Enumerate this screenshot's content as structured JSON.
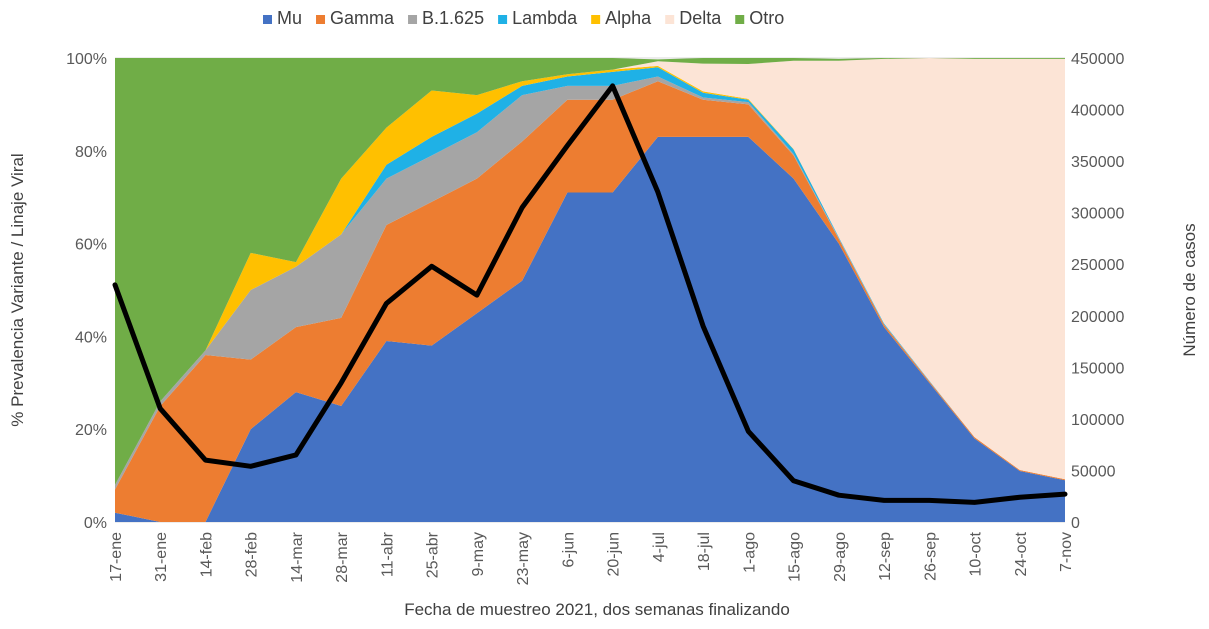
{
  "chart_data": {
    "type": "area",
    "stacked": true,
    "normalized_percent": true,
    "xlabel": "Fecha de muestreo 2021, dos semanas finalizando",
    "ylabel": "% Prevalencia Variante / Linaje Viral",
    "y2label": "Número de casos",
    "categories": [
      "17-ene",
      "31-ene",
      "14-feb",
      "28-feb",
      "14-mar",
      "28-mar",
      "11-abr",
      "25-abr",
      "9-may",
      "23-may",
      "6-jun",
      "20-jun",
      "4-jul",
      "18-jul",
      "1-ago",
      "15-ago",
      "29-ago",
      "12-sep",
      "26-sep",
      "10-oct",
      "24-oct",
      "7-nov"
    ],
    "ylim": [
      0,
      100
    ],
    "y_ticks": [
      "0%",
      "20%",
      "40%",
      "60%",
      "80%",
      "100%"
    ],
    "y2lim": [
      0,
      450000
    ],
    "y2_ticks": [
      "0",
      "50000",
      "100000",
      "150000",
      "200000",
      "250000",
      "300000",
      "350000",
      "400000",
      "450000"
    ],
    "legend_position": "top",
    "series": [
      {
        "name": "Mu",
        "color": "#4472C4",
        "values": [
          2,
          0,
          0,
          20,
          28,
          25,
          39,
          38,
          45,
          52,
          71,
          71,
          83,
          83,
          83,
          74,
          60,
          42,
          30,
          18,
          11,
          9
        ]
      },
      {
        "name": "Gamma",
        "color": "#ED7D31",
        "values": [
          5,
          25,
          36,
          15,
          14,
          19,
          25,
          31,
          29,
          30,
          20,
          20,
          12,
          8,
          7,
          5,
          1,
          0.5,
          0.3,
          0.3,
          0.2,
          0.2
        ]
      },
      {
        "name": "B.1.625",
        "color": "#A5A5A5",
        "values": [
          1,
          1,
          1,
          15,
          13,
          18,
          10,
          10,
          10,
          10,
          3,
          3,
          1,
          0.5,
          0.5,
          0.3,
          0.2,
          0.1,
          0.1,
          0,
          0,
          0
        ]
      },
      {
        "name": "Lambda",
        "color": "#1FB1E6",
        "values": [
          0,
          0,
          0,
          0,
          0,
          0,
          3,
          4,
          4,
          2,
          2,
          3,
          2,
          1,
          0.5,
          1,
          0.2,
          0.2,
          0.1,
          0,
          0,
          0
        ]
      },
      {
        "name": "Alpha",
        "color": "#FFC000",
        "values": [
          0,
          0,
          0,
          8,
          1,
          12,
          8,
          10,
          4,
          1,
          0.5,
          0.5,
          0.3,
          0.3,
          0.2,
          0.1,
          0,
          0,
          0,
          0,
          0,
          0
        ]
      },
      {
        "name": "Delta",
        "color": "#FCE4D6",
        "values": [
          0,
          0,
          0,
          0,
          0,
          0,
          0,
          0,
          0,
          0,
          0,
          0,
          1,
          6,
          7.5,
          19,
          38,
          57,
          69.5,
          81.5,
          88.6,
          90.6
        ]
      },
      {
        "name": "Otro",
        "color": "#70AD47",
        "values": [
          92,
          74,
          63,
          42,
          44,
          26,
          15,
          7,
          8,
          5,
          3.5,
          2.5,
          0.4,
          1.2,
          1.3,
          0.6,
          0.4,
          0.2,
          0,
          0.2,
          0.2,
          0.2
        ]
      }
    ],
    "line_series": {
      "axis": "secondary",
      "color": "#000000",
      "values": [
        230000,
        110000,
        60000,
        54000,
        65000,
        135000,
        212000,
        248000,
        220000,
        305000,
        365000,
        423000,
        320000,
        190000,
        88000,
        40000,
        26000,
        21000,
        21000,
        19000,
        24000,
        27000
      ]
    }
  }
}
